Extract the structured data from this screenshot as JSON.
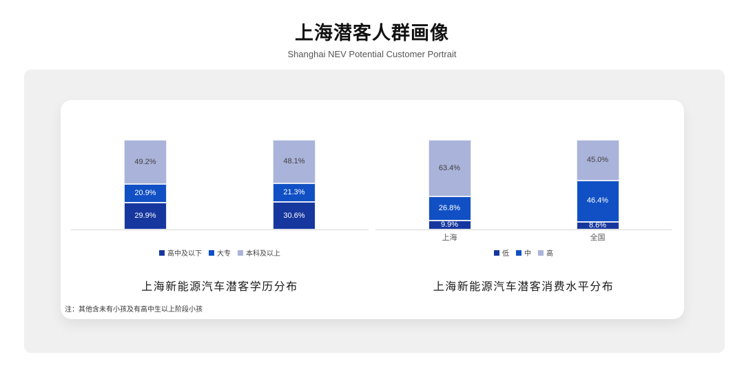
{
  "header": {
    "title": "上海潜客人群画像",
    "subtitle": "Shanghai NEV Potential Customer Portrait"
  },
  "card": {
    "note": "注：其他含未有小孩及有高中生以上阶段小孩"
  },
  "colors": {
    "series_dark_blue": "#16379e",
    "series_mid_blue": "#1150c4",
    "series_light_blue": "#aab3d9",
    "axis_line": "#d9d9d9",
    "panel_bg": "#f0f0f1",
    "card_bg": "#ffffff"
  },
  "chart_data": [
    {
      "type": "bar",
      "stacked": true,
      "orientation": "vertical",
      "title": "上海新能源汽车潜客学历分布",
      "categories": [
        "",
        ""
      ],
      "series": [
        {
          "name": "高中及以下",
          "values": [
            29.9,
            30.6
          ],
          "color": "#16379e",
          "label_color": "#ffffff"
        },
        {
          "name": "大专",
          "values": [
            20.9,
            21.3
          ],
          "color": "#1150c4",
          "label_color": "#ffffff"
        },
        {
          "name": "本科及以上",
          "values": [
            49.2,
            48.1
          ],
          "color": "#aab3d9",
          "label_color": "#404040"
        }
      ],
      "ylim": [
        0,
        100
      ],
      "value_suffix": "%",
      "grid": false,
      "legend_position": "bottom"
    },
    {
      "type": "bar",
      "stacked": true,
      "orientation": "vertical",
      "title": "上海新能源汽车潜客消费水平分布",
      "categories": [
        "上海",
        "全国"
      ],
      "series": [
        {
          "name": "低",
          "values": [
            9.9,
            8.6
          ],
          "color": "#16379e",
          "label_color": "#ffffff"
        },
        {
          "name": "中",
          "values": [
            26.8,
            46.4
          ],
          "color": "#1150c4",
          "label_color": "#ffffff"
        },
        {
          "name": "高",
          "values": [
            63.4,
            45.0
          ],
          "color": "#aab3d9",
          "label_color": "#404040"
        }
      ],
      "ylim": [
        0,
        100
      ],
      "value_suffix": "%",
      "grid": false,
      "legend_position": "bottom"
    }
  ]
}
